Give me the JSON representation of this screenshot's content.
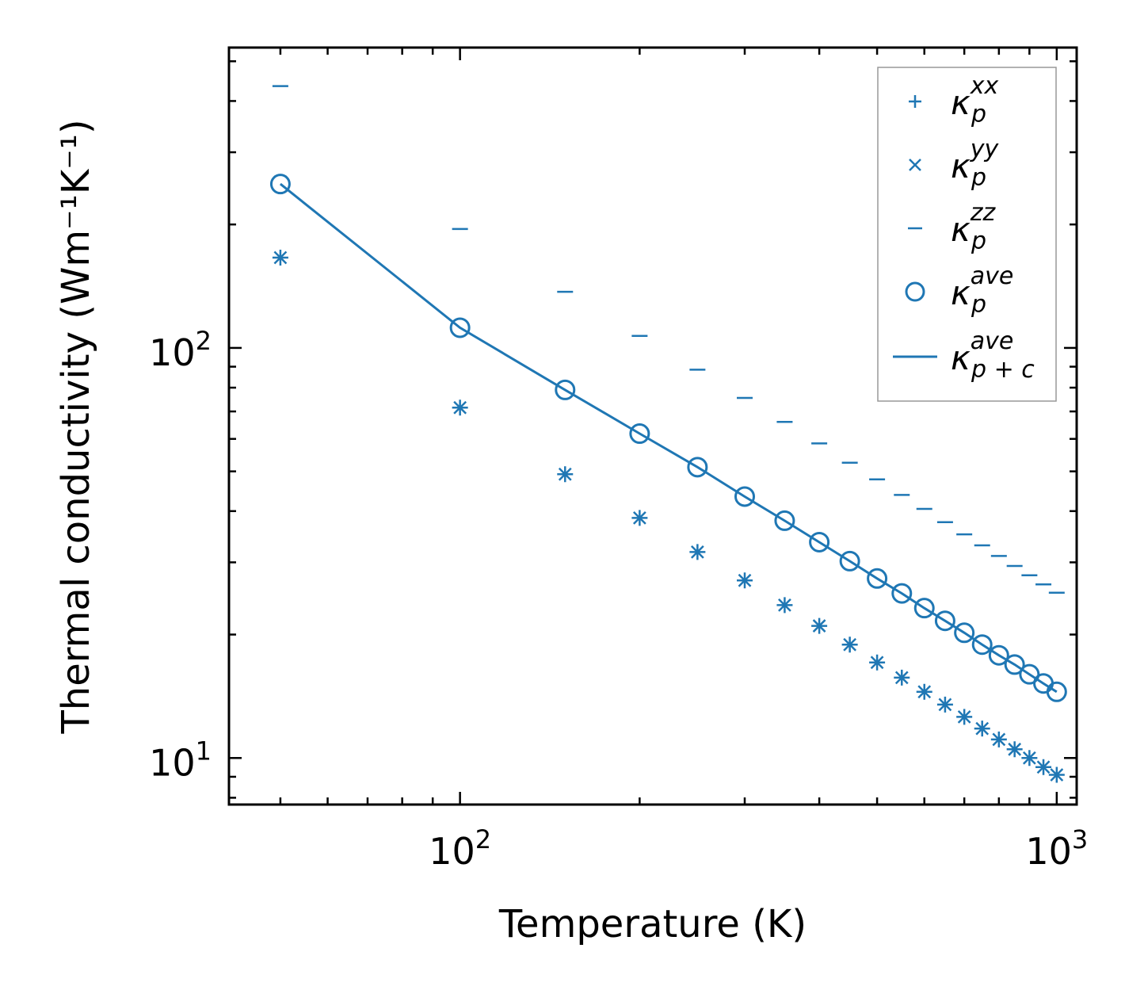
{
  "chart_data": {
    "type": "scatter",
    "xscale": "log",
    "yscale": "log",
    "xlim": [
      41,
      1080
    ],
    "ylim": [
      7.7,
      540
    ],
    "xlabel": "Temperature (K)",
    "ylabel": "Thermal conductivity (Wm⁻¹K⁻¹)",
    "xticks": [
      {
        "base": "10",
        "exp": "2"
      },
      {
        "base": "10",
        "exp": "3"
      }
    ],
    "yticks": [
      {
        "base": "10",
        "exp": "1"
      },
      {
        "base": "10",
        "exp": "2"
      }
    ],
    "color": "#1f77b4",
    "x": [
      50,
      100,
      150,
      200,
      250,
      300,
      350,
      400,
      450,
      500,
      550,
      600,
      650,
      700,
      750,
      800,
      850,
      900,
      950,
      1000
    ],
    "series": [
      {
        "name": "kappa_p_xx",
        "marker": "plus",
        "values": [
          166,
          71.5,
          49.2,
          38.5,
          31.8,
          27.1,
          23.6,
          21.0,
          18.9,
          17.1,
          15.7,
          14.5,
          13.5,
          12.6,
          11.8,
          11.1,
          10.5,
          10.0,
          9.5,
          9.1
        ]
      },
      {
        "name": "kappa_p_yy",
        "marker": "x",
        "values": [
          166,
          71.5,
          49.2,
          38.5,
          31.8,
          27.1,
          23.6,
          21.0,
          18.9,
          17.1,
          15.7,
          14.5,
          13.5,
          12.6,
          11.8,
          11.1,
          10.5,
          10.0,
          9.5,
          9.1
        ]
      },
      {
        "name": "kappa_p_zz",
        "marker": "hline",
        "values": [
          435,
          195,
          137,
          107,
          88.5,
          75.5,
          66.0,
          58.5,
          52.5,
          47.8,
          43.8,
          40.5,
          37.6,
          35.1,
          33.0,
          31.1,
          29.4,
          27.9,
          26.5,
          25.3
        ]
      },
      {
        "name": "kappa_p_ave",
        "marker": "circle",
        "values": [
          251,
          112,
          79,
          61.8,
          51.2,
          43.4,
          37.9,
          33.6,
          30.2,
          27.4,
          25.2,
          23.2,
          21.6,
          20.2,
          18.9,
          17.8,
          16.9,
          16.0,
          15.2,
          14.5
        ]
      },
      {
        "name": "kappa_p+c_ave",
        "marker": "line",
        "values": [
          251,
          112,
          79,
          61.8,
          51.2,
          43.4,
          37.9,
          33.6,
          30.2,
          27.4,
          25.2,
          23.2,
          21.6,
          20.2,
          18.9,
          17.8,
          16.9,
          16.0,
          15.2,
          14.5
        ]
      }
    ],
    "legend": {
      "placement": "top-right",
      "entries": [
        {
          "symbol": "κ",
          "sub": "p",
          "sup": "xx"
        },
        {
          "symbol": "κ",
          "sub": "p",
          "sup": "yy"
        },
        {
          "symbol": "κ",
          "sub": "p",
          "sup": "zz"
        },
        {
          "symbol": "κ",
          "sub": "p",
          "sup": "ave"
        },
        {
          "symbol": "κ",
          "sub": "p + c",
          "sup": "ave"
        }
      ]
    }
  }
}
